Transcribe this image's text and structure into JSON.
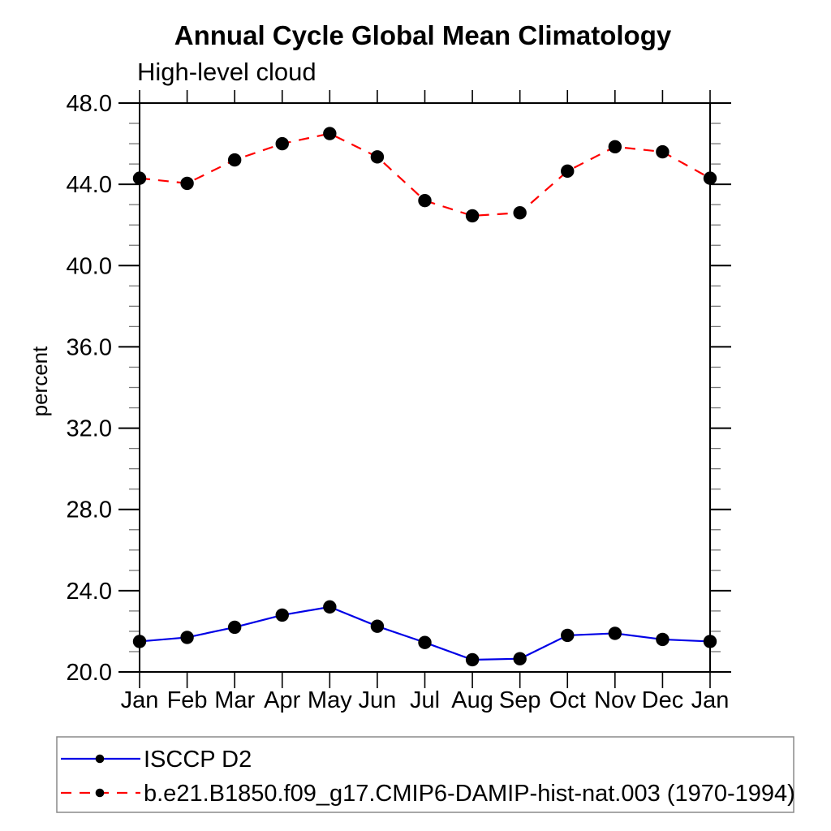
{
  "page": {
    "background_color": "#ffffff",
    "axis_color": "#000000",
    "minor_tick_color": "#777777",
    "legend_border_color": "#8a8a8a"
  },
  "chart_data": {
    "type": "line",
    "title": "Annual Cycle Global Mean Climatology",
    "subtitle": "High-level cloud",
    "ylabel": "percent",
    "xlabel": "",
    "x_tick_labels": [
      "Jan",
      "Feb",
      "Mar",
      "Apr",
      "May",
      "Jun",
      "Jul",
      "Aug",
      "Sep",
      "Oct",
      "Nov",
      "Dec",
      "Jan"
    ],
    "ylim": [
      20.0,
      48.0
    ],
    "ytick_major_step": 4.0,
    "ytick_minor_step": 1.0,
    "ytick_decimals": 1,
    "grid": false,
    "legend_position": "bottom-left-boxed",
    "series": [
      {
        "name": "ISCCP D2",
        "color": "#0000e6",
        "line_style": "solid",
        "marker": "filled-circle",
        "marker_color": "#000000",
        "values": [
          21.5,
          21.7,
          22.2,
          22.8,
          23.2,
          22.25,
          21.45,
          20.6,
          20.65,
          21.8,
          21.9,
          21.6,
          21.5
        ]
      },
      {
        "name": "b.e21.B1850.f09_g17.CMIP6-DAMIP-hist-nat.003 (1970-1994)",
        "color": "#ff0000",
        "line_style": "dashed",
        "marker": "filled-circle",
        "marker_color": "#000000",
        "values": [
          44.3,
          44.05,
          45.2,
          46.0,
          46.5,
          45.35,
          43.2,
          42.45,
          42.6,
          44.65,
          45.85,
          45.6,
          44.3
        ]
      }
    ]
  }
}
